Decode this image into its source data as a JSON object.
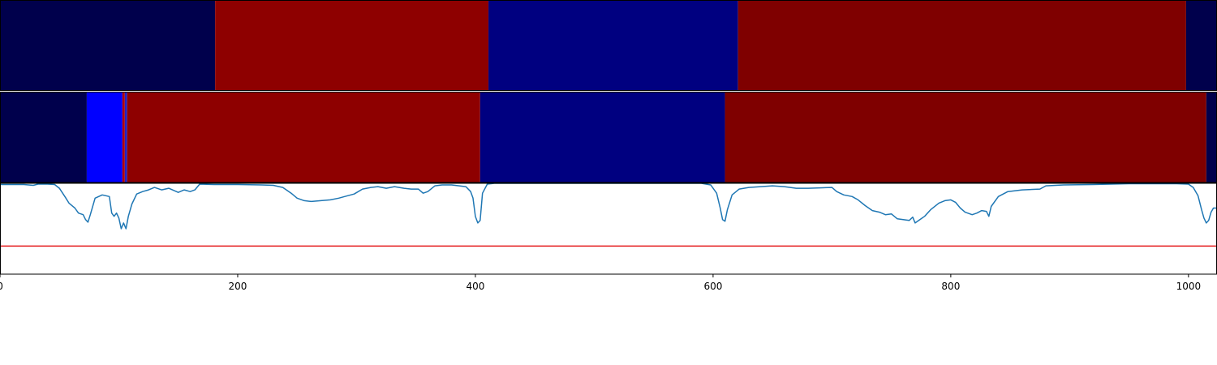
{
  "chart_data": [
    {
      "type": "heatmap",
      "row": "top",
      "xlim": [
        0,
        1024
      ],
      "segments": [
        {
          "start": 0,
          "end": 181,
          "color": "#00004c"
        },
        {
          "start": 181,
          "end": 411,
          "color": "#8e0000"
        },
        {
          "start": 411,
          "end": 621,
          "color": "#000080"
        },
        {
          "start": 621,
          "end": 998,
          "color": "#7f0000"
        },
        {
          "start": 998,
          "end": 1024,
          "color": "#00004c"
        }
      ]
    },
    {
      "type": "heatmap",
      "row": "middle",
      "xlim": [
        0,
        1024
      ],
      "segments": [
        {
          "start": 0,
          "end": 73,
          "color": "#00004c"
        },
        {
          "start": 73,
          "end": 103,
          "color": "#0000ff"
        },
        {
          "start": 103,
          "end": 105,
          "color": "#b00000"
        },
        {
          "start": 105,
          "end": 107,
          "color": "#2020c0"
        },
        {
          "start": 107,
          "end": 404,
          "color": "#8e0000"
        },
        {
          "start": 404,
          "end": 610,
          "color": "#000080"
        },
        {
          "start": 610,
          "end": 1015,
          "color": "#7f0000"
        },
        {
          "start": 1015,
          "end": 1024,
          "color": "#00004c"
        }
      ]
    },
    {
      "type": "line",
      "row": "bottom",
      "xlim": [
        0,
        1024
      ],
      "ylim": [
        -0.1,
        1.0
      ],
      "threshold": {
        "y": 0.24,
        "color": "#e41a1c"
      },
      "series": [
        {
          "color": "#1f77b4",
          "points": [
            [
              0,
              0.985
            ],
            [
              10,
              0.985
            ],
            [
              20,
              0.985
            ],
            [
              28,
              0.975
            ],
            [
              32,
              0.99
            ],
            [
              40,
              0.99
            ],
            [
              46,
              0.985
            ],
            [
              50,
              0.94
            ],
            [
              55,
              0.83
            ],
            [
              58,
              0.76
            ],
            [
              63,
              0.7
            ],
            [
              66,
              0.64
            ],
            [
              70,
              0.62
            ],
            [
              72,
              0.56
            ],
            [
              74,
              0.53
            ],
            [
              76,
              0.62
            ],
            [
              80,
              0.82
            ],
            [
              86,
              0.86
            ],
            [
              92,
              0.84
            ],
            [
              94,
              0.64
            ],
            [
              96,
              0.6
            ],
            [
              98,
              0.64
            ],
            [
              100,
              0.58
            ],
            [
              102,
              0.45
            ],
            [
              104,
              0.52
            ],
            [
              106,
              0.45
            ],
            [
              108,
              0.6
            ],
            [
              111,
              0.75
            ],
            [
              115,
              0.87
            ],
            [
              120,
              0.9
            ],
            [
              125,
              0.92
            ],
            [
              130,
              0.95
            ],
            [
              136,
              0.92
            ],
            [
              142,
              0.94
            ],
            [
              150,
              0.89
            ],
            [
              155,
              0.92
            ],
            [
              160,
              0.9
            ],
            [
              164,
              0.92
            ],
            [
              168,
              0.99
            ],
            [
              180,
              0.985
            ],
            [
              200,
              0.985
            ],
            [
              220,
              0.98
            ],
            [
              230,
              0.975
            ],
            [
              238,
              0.95
            ],
            [
              245,
              0.88
            ],
            [
              250,
              0.82
            ],
            [
              256,
              0.79
            ],
            [
              262,
              0.78
            ],
            [
              270,
              0.79
            ],
            [
              278,
              0.8
            ],
            [
              285,
              0.82
            ],
            [
              290,
              0.84
            ],
            [
              298,
              0.87
            ],
            [
              305,
              0.93
            ],
            [
              312,
              0.95
            ],
            [
              318,
              0.96
            ],
            [
              325,
              0.94
            ],
            [
              332,
              0.96
            ],
            [
              340,
              0.94
            ],
            [
              346,
              0.93
            ],
            [
              352,
              0.93
            ],
            [
              356,
              0.88
            ],
            [
              360,
              0.9
            ],
            [
              366,
              0.97
            ],
            [
              372,
              0.98
            ],
            [
              380,
              0.98
            ],
            [
              392,
              0.96
            ],
            [
              396,
              0.9
            ],
            [
              398,
              0.82
            ],
            [
              400,
              0.6
            ],
            [
              402,
              0.52
            ],
            [
              404,
              0.55
            ],
            [
              406,
              0.88
            ],
            [
              410,
              0.99
            ],
            [
              416,
              1.0
            ],
            [
              450,
              1.0
            ],
            [
              500,
              1.0
            ],
            [
              550,
              1.0
            ],
            [
              590,
              1.0
            ],
            [
              598,
              0.98
            ],
            [
              603,
              0.88
            ],
            [
              606,
              0.7
            ],
            [
              608,
              0.56
            ],
            [
              610,
              0.54
            ],
            [
              612,
              0.68
            ],
            [
              616,
              0.86
            ],
            [
              622,
              0.93
            ],
            [
              630,
              0.95
            ],
            [
              640,
              0.96
            ],
            [
              650,
              0.97
            ],
            [
              660,
              0.96
            ],
            [
              670,
              0.94
            ],
            [
              680,
              0.94
            ],
            [
              690,
              0.945
            ],
            [
              700,
              0.95
            ],
            [
              704,
              0.9
            ],
            [
              710,
              0.86
            ],
            [
              717,
              0.84
            ],
            [
              722,
              0.8
            ],
            [
              728,
              0.73
            ],
            [
              734,
              0.67
            ],
            [
              740,
              0.65
            ],
            [
              745,
              0.62
            ],
            [
              750,
              0.63
            ],
            [
              755,
              0.57
            ],
            [
              760,
              0.56
            ],
            [
              765,
              0.55
            ],
            [
              768,
              0.59
            ],
            [
              770,
              0.52
            ],
            [
              774,
              0.56
            ],
            [
              778,
              0.6
            ],
            [
              783,
              0.68
            ],
            [
              790,
              0.76
            ],
            [
              795,
              0.79
            ],
            [
              800,
              0.8
            ],
            [
              804,
              0.77
            ],
            [
              808,
              0.7
            ],
            [
              812,
              0.65
            ],
            [
              818,
              0.62
            ],
            [
              822,
              0.64
            ],
            [
              826,
              0.67
            ],
            [
              830,
              0.66
            ],
            [
              832,
              0.6
            ],
            [
              834,
              0.72
            ],
            [
              840,
              0.84
            ],
            [
              848,
              0.9
            ],
            [
              860,
              0.92
            ],
            [
              875,
              0.93
            ],
            [
              880,
              0.97
            ],
            [
              895,
              0.98
            ],
            [
              920,
              0.985
            ],
            [
              950,
              0.995
            ],
            [
              990,
              0.995
            ],
            [
              1000,
              0.99
            ],
            [
              1004,
              0.95
            ],
            [
              1008,
              0.85
            ],
            [
              1011,
              0.68
            ],
            [
              1013,
              0.58
            ],
            [
              1015,
              0.52
            ],
            [
              1017,
              0.55
            ],
            [
              1019,
              0.65
            ],
            [
              1021,
              0.7
            ],
            [
              1024,
              0.7
            ]
          ]
        }
      ]
    }
  ],
  "x_axis": {
    "ticks": [
      0,
      200,
      400,
      600,
      800,
      1000
    ],
    "tick_labels": [
      "0",
      "200",
      "400",
      "600",
      "800",
      "1000"
    ]
  }
}
